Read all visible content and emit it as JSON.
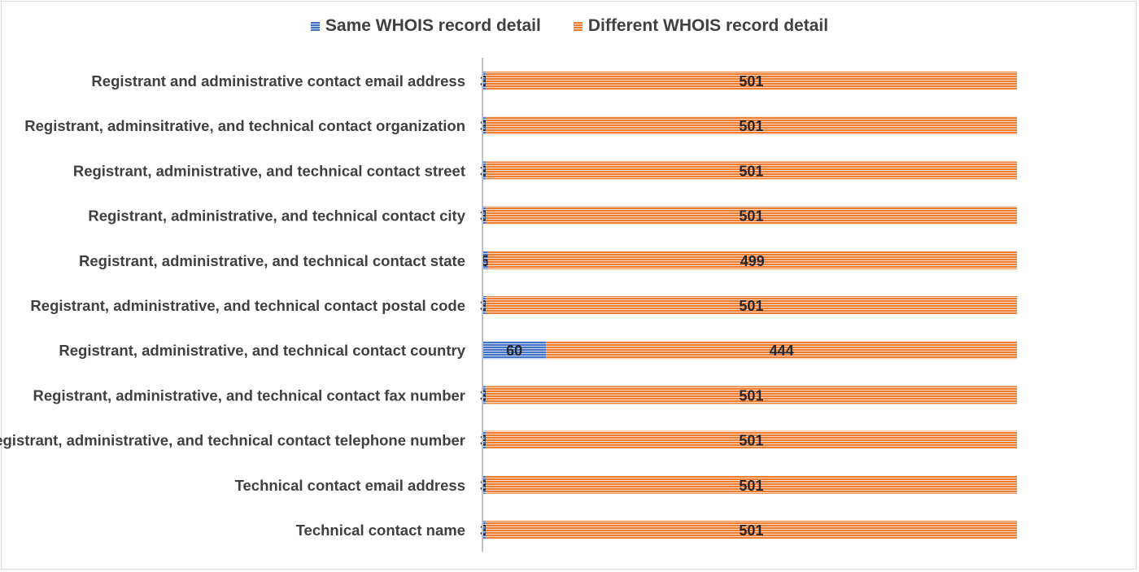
{
  "chart_data": {
    "type": "bar",
    "orientation": "horizontal",
    "stacked": true,
    "categories": [
      "Registrant and administrative contact email address",
      "Registrant, adminsitrative, and technical contact organization",
      "Registrant, administrative, and technical contact street",
      "Registrant, administrative, and technical contact city",
      "Registrant, administrative, and technical contact state",
      "Registrant, administrative, and technical contact postal code",
      "Registrant, administrative, and technical contact country",
      "Registrant, administrative, and technical contact fax number",
      "Registrant, administrative, and technical contact telephone number",
      "Technical contact email address",
      "Technical contact name"
    ],
    "series": [
      {
        "name": "Same WHOIS record detail",
        "color": "#4472c4",
        "values": [
          3,
          3,
          3,
          3,
          5,
          3,
          60,
          3,
          3,
          3,
          3
        ]
      },
      {
        "name": "Different WHOIS record detail",
        "color": "#ed7d31",
        "values": [
          501,
          501,
          501,
          501,
          499,
          501,
          444,
          501,
          501,
          501,
          501
        ]
      }
    ],
    "xlim": [
      0,
      504
    ],
    "grid": false,
    "legend_position": "top",
    "data_labels": true
  }
}
